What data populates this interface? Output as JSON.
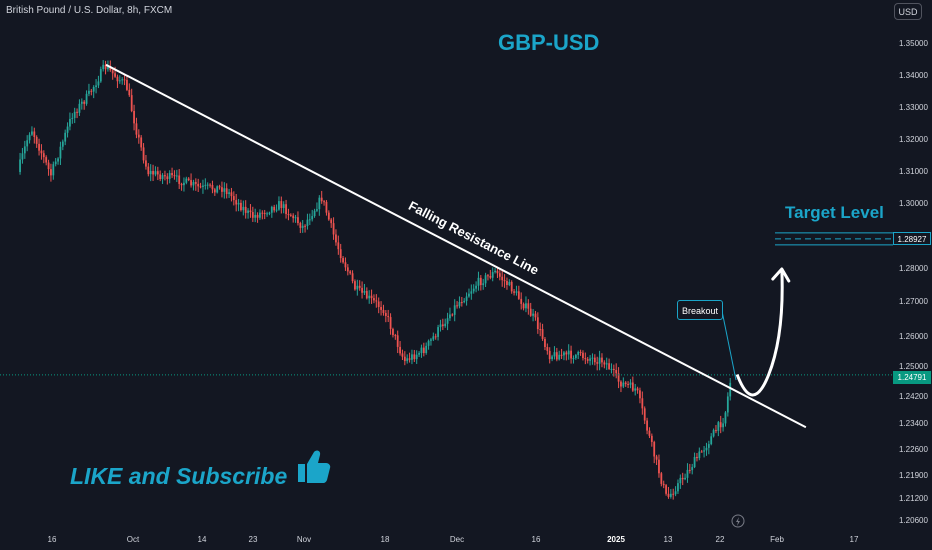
{
  "header": {
    "symbol_title": "British Pound / U.S. Dollar, 8h, FXCM",
    "currency_button": "USD"
  },
  "annotations": {
    "main_title": "GBP-USD",
    "target_title": "Target Level",
    "resistance_label": "Falling Resistance Line",
    "breakout_label": "Breakout",
    "like_text": "LIKE and Subscribe"
  },
  "colors": {
    "background": "#131722",
    "bullish": "#26a69a",
    "bearish": "#ef5350",
    "accent": "#1ba5c9",
    "axis_text": "#d1d4dc",
    "last_price_badge": "#089981"
  },
  "icons": {
    "thumbs_up": "thumbs-up-icon",
    "lightning": "lightning-icon"
  },
  "chart_data": {
    "type": "candlestick",
    "instrument": "GBP-USD",
    "timeframe": "8h",
    "y_axis": {
      "ticks": [
        "1.35000",
        "1.34000",
        "1.33000",
        "1.32000",
        "1.31000",
        "1.30000",
        "1.28000",
        "1.27000",
        "1.26000",
        "1.25000",
        "1.24200",
        "1.23400",
        "1.22600",
        "1.21900",
        "1.21200",
        "1.20600"
      ]
    },
    "x_axis": {
      "ticks": [
        {
          "label": "16",
          "bold": false
        },
        {
          "label": "Oct",
          "bold": false
        },
        {
          "label": "14",
          "bold": false
        },
        {
          "label": "23",
          "bold": false
        },
        {
          "label": "Nov",
          "bold": false
        },
        {
          "label": "18",
          "bold": false
        },
        {
          "label": "Dec",
          "bold": false
        },
        {
          "label": "16",
          "bold": false
        },
        {
          "label": "2025",
          "bold": true
        },
        {
          "label": "13",
          "bold": false
        },
        {
          "label": "22",
          "bold": false
        },
        {
          "label": "Feb",
          "bold": false
        },
        {
          "label": "17",
          "bold": false
        }
      ]
    },
    "price_path": [
      {
        "date": "2024-09-11",
        "price": 1.31
      },
      {
        "date": "2024-09-13",
        "price": 1.324
      },
      {
        "date": "2024-09-16",
        "price": 1.309
      },
      {
        "date": "2024-09-20",
        "price": 1.328
      },
      {
        "date": "2024-09-23",
        "price": 1.334
      },
      {
        "date": "2024-09-26",
        "price": 1.343
      },
      {
        "date": "2024-09-30",
        "price": 1.337
      },
      {
        "date": "2024-10-02",
        "price": 1.322
      },
      {
        "date": "2024-10-04",
        "price": 1.31
      },
      {
        "date": "2024-10-09",
        "price": 1.308
      },
      {
        "date": "2024-10-14",
        "price": 1.305
      },
      {
        "date": "2024-10-18",
        "price": 1.305
      },
      {
        "date": "2024-10-23",
        "price": 1.296
      },
      {
        "date": "2024-10-28",
        "price": 1.3
      },
      {
        "date": "2024-11-01",
        "price": 1.293
      },
      {
        "date": "2024-11-05",
        "price": 1.302
      },
      {
        "date": "2024-11-08",
        "price": 1.288
      },
      {
        "date": "2024-11-12",
        "price": 1.274
      },
      {
        "date": "2024-11-18",
        "price": 1.268
      },
      {
        "date": "2024-11-22",
        "price": 1.252
      },
      {
        "date": "2024-11-26",
        "price": 1.256
      },
      {
        "date": "2024-12-02",
        "price": 1.269
      },
      {
        "date": "2024-12-06",
        "price": 1.276
      },
      {
        "date": "2024-12-09",
        "price": 1.279
      },
      {
        "date": "2024-12-12",
        "price": 1.274
      },
      {
        "date": "2024-12-16",
        "price": 1.265
      },
      {
        "date": "2024-12-19",
        "price": 1.254
      },
      {
        "date": "2024-12-24",
        "price": 1.254
      },
      {
        "date": "2024-12-30",
        "price": 1.252
      },
      {
        "date": "2025-01-02",
        "price": 1.246
      },
      {
        "date": "2025-01-06",
        "price": 1.244
      },
      {
        "date": "2025-01-10",
        "price": 1.225
      },
      {
        "date": "2025-01-13",
        "price": 1.212
      },
      {
        "date": "2025-01-16",
        "price": 1.219
      },
      {
        "date": "2025-01-20",
        "price": 1.228
      },
      {
        "date": "2025-01-23",
        "price": 1.236
      },
      {
        "date": "2025-01-24",
        "price": 1.246
      }
    ],
    "resistance_line": [
      {
        "date": "2024-09-26",
        "price": 1.3435
      },
      {
        "date": "2025-02-07",
        "price": 1.233
      }
    ],
    "target_level": 1.28927,
    "last_price": 1.24791,
    "price_labels": {
      "target": "1.28927",
      "last": "1.24791"
    },
    "projection": {
      "type": "curved-arrow",
      "points": [
        {
          "date": "2025-01-25",
          "price": 1.248
        },
        {
          "date": "2025-01-27",
          "price": 1.2425
        },
        {
          "date": "2025-02-02",
          "price": 1.28
        }
      ]
    },
    "candle_count": 300
  }
}
